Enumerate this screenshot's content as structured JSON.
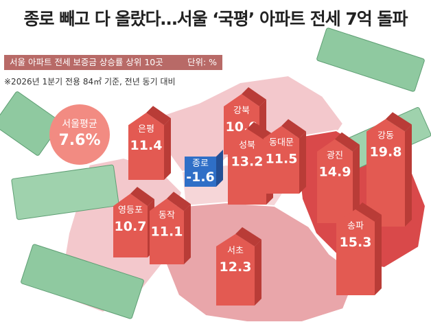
{
  "header": {
    "title": "종로 빼고 다 올랐다…서울 ‘국평’ 아파트 전세 7억 돌파",
    "subtitle": "서울 아파트 전세 보증금 상승률 상위 10곳",
    "unit": "단위: %",
    "footnote": "※2026년 1분기 전용 84㎡ 기준, 전년 동기 대비"
  },
  "seoul_average": {
    "label": "서울평균",
    "value": "7.6%"
  },
  "colors": {
    "bar_red": "#e35a52",
    "bar_dark": "#b93c37",
    "bar_blue": "#2f6fc7",
    "bar_blue_dark": "#234f95",
    "map_pink": "#f3c8cc",
    "map_red": "#d9494a",
    "badge": "#f28b82",
    "money_green": "#8fc9a0"
  },
  "chart_data": {
    "type": "bar",
    "title": "서울 아파트 전세 보증금 상승률 상위 10곳",
    "unit": "%",
    "categories": [
      "강북",
      "은평",
      "성북",
      "동대문",
      "종로",
      "영등포",
      "동작",
      "광진",
      "강동",
      "서초",
      "송파"
    ],
    "values": [
      10.0,
      11.4,
      13.2,
      11.5,
      -1.6,
      10.7,
      11.1,
      14.9,
      19.8,
      12.3,
      15.3
    ],
    "value_labels": [
      "10.0",
      "11.4",
      "13.2",
      "11.5",
      "-1.6",
      "10.7",
      "11.1",
      "14.9",
      "19.8",
      "12.3",
      "15.3"
    ]
  }
}
